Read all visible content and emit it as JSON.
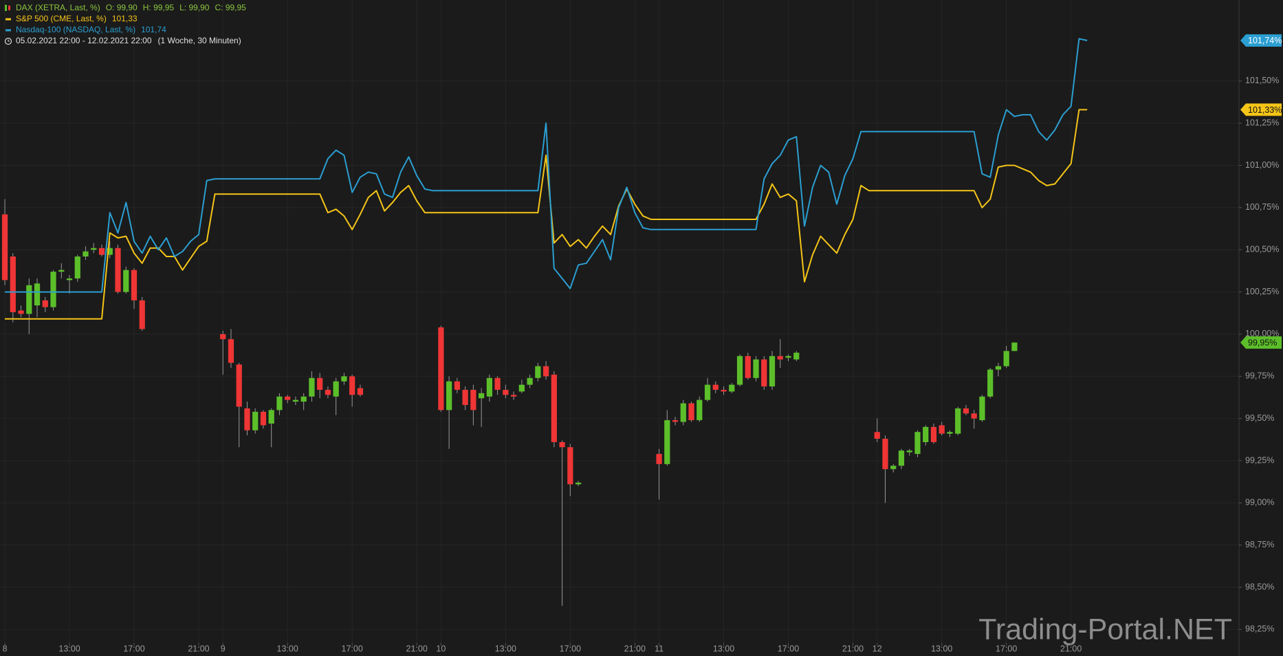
{
  "chart_data": {
    "type": "candlestick",
    "period": "05.02.2021 22:00 - 12.02.2021 22:00",
    "resolution": "(1 Woche, 30 Minuten)",
    "watermark": "Trading-Portal.NET",
    "grid": true,
    "xlim": [
      -0.6,
      152.8
    ],
    "xticks": [
      {
        "value": 0,
        "label": "8"
      },
      {
        "value": 8,
        "label": "13:00"
      },
      {
        "value": 16,
        "label": "17:00"
      },
      {
        "value": 24,
        "label": "21:00"
      },
      {
        "value": 27,
        "label": "9"
      },
      {
        "value": 35,
        "label": "13:00"
      },
      {
        "value": 43,
        "label": "17:00"
      },
      {
        "value": 51,
        "label": "21:00"
      },
      {
        "value": 54,
        "label": "10"
      },
      {
        "value": 62,
        "label": "13:00"
      },
      {
        "value": 70,
        "label": "17:00"
      },
      {
        "value": 78,
        "label": "21:00"
      },
      {
        "value": 81,
        "label": "11"
      },
      {
        "value": 89,
        "label": "13:00"
      },
      {
        "value": 97,
        "label": "17:00"
      },
      {
        "value": 105,
        "label": "21:00"
      },
      {
        "value": 108,
        "label": "12"
      },
      {
        "value": 116,
        "label": "13:00"
      },
      {
        "value": 124,
        "label": "17:00"
      },
      {
        "value": 132,
        "label": "21:00"
      }
    ],
    "ylim": [
      98.17,
      101.98
    ],
    "yticks": [
      {
        "value": 98.25,
        "label": "98,25%"
      },
      {
        "value": 98.5,
        "label": "98,50%"
      },
      {
        "value": 98.75,
        "label": "98,75%"
      },
      {
        "value": 99,
        "label": "99,00%"
      },
      {
        "value": 99.25,
        "label": "99,25%"
      },
      {
        "value": 99.5,
        "label": "99,50%"
      },
      {
        "value": 99.75,
        "label": "99,75%"
      },
      {
        "value": 100,
        "label": "100,00%"
      },
      {
        "value": 100.25,
        "label": "100,25%"
      },
      {
        "value": 100.5,
        "label": "100,50%"
      },
      {
        "value": 100.75,
        "label": "100,75%"
      },
      {
        "value": 101,
        "label": "101,00%"
      },
      {
        "value": 101.25,
        "label": "101,25%"
      },
      {
        "value": 101.5,
        "label": "101,50%"
      }
    ],
    "series": [
      {
        "type": "candlestick",
        "name": "DAX (XETRA, Last, %)",
        "up_color": "#5cbf2a",
        "down_color": "#ef3535",
        "text_color": "#8cc63f",
        "legend_values": [
          "O: 99,90",
          "H: 99,95",
          "L: 99,90",
          "C: 99,95"
        ],
        "last_label": "99,95%",
        "x": [
          0,
          1,
          2,
          3,
          4,
          5,
          6,
          7,
          8,
          9,
          10,
          11,
          12,
          13,
          14,
          15,
          16,
          17,
          27,
          28,
          29,
          30,
          31,
          32,
          33,
          34,
          35,
          36,
          37,
          38,
          39,
          40,
          41,
          42,
          43,
          44,
          54,
          55,
          56,
          57,
          58,
          59,
          60,
          61,
          62,
          63,
          64,
          65,
          66,
          67,
          68,
          69,
          70,
          71,
          81,
          82,
          83,
          84,
          85,
          86,
          87,
          88,
          89,
          90,
          91,
          92,
          93,
          94,
          95,
          96,
          97,
          98,
          108,
          109,
          110,
          111,
          112,
          113,
          114,
          115,
          116,
          117,
          118,
          119,
          120,
          121,
          122,
          123,
          124,
          125
        ],
        "open": [
          100.71,
          100.46,
          100.14,
          100.12,
          100.17,
          100.2,
          100.16,
          100.37,
          100.32,
          100.33,
          100.46,
          100.5,
          100.51,
          100.47,
          100.51,
          100.25,
          100.38,
          100.2,
          100.0,
          99.97,
          99.82,
          99.56,
          99.43,
          99.54,
          99.47,
          99.55,
          99.63,
          99.6,
          99.6,
          99.63,
          99.74,
          99.67,
          99.63,
          99.72,
          99.75,
          99.68,
          100.04,
          99.55,
          99.72,
          99.67,
          99.67,
          99.62,
          99.63,
          99.74,
          99.67,
          99.64,
          99.66,
          99.7,
          99.74,
          99.81,
          99.76,
          99.36,
          99.33,
          99.11,
          99.29,
          99.23,
          99.49,
          99.48,
          99.59,
          99.49,
          99.61,
          99.7,
          99.67,
          99.66,
          99.7,
          99.87,
          99.74,
          99.85,
          99.69,
          99.87,
          99.86,
          99.85,
          99.42,
          99.38,
          99.2,
          99.22,
          99.3,
          99.29,
          99.36,
          99.45,
          99.46,
          99.41,
          99.41,
          99.56,
          99.53,
          99.49,
          99.63,
          99.79,
          99.81,
          99.9
        ],
        "high": [
          100.8,
          100.48,
          100.17,
          100.33,
          100.33,
          100.22,
          100.38,
          100.42,
          100.35,
          100.47,
          100.52,
          100.54,
          100.53,
          100.55,
          100.53,
          100.4,
          100.39,
          100.22,
          100.02,
          100.03,
          99.83,
          99.6,
          99.56,
          99.55,
          99.56,
          99.65,
          99.64,
          99.63,
          99.65,
          99.78,
          99.77,
          99.69,
          99.74,
          99.77,
          99.76,
          99.7,
          100.05,
          99.75,
          99.74,
          99.69,
          99.7,
          99.68,
          99.76,
          99.75,
          99.7,
          99.66,
          99.73,
          99.76,
          99.83,
          99.84,
          99.78,
          99.37,
          99.35,
          99.13,
          99.32,
          99.55,
          99.51,
          99.61,
          99.6,
          99.63,
          99.74,
          99.72,
          99.69,
          99.71,
          99.88,
          99.89,
          99.87,
          99.87,
          99.9,
          99.97,
          99.88,
          99.9,
          99.5,
          99.4,
          99.23,
          99.32,
          99.32,
          99.43,
          99.46,
          99.47,
          99.48,
          99.43,
          99.57,
          99.58,
          99.55,
          99.64,
          99.8,
          99.83,
          99.93,
          99.95
        ],
        "low": [
          100.29,
          100.07,
          100.1,
          100.0,
          100.1,
          100.13,
          100.14,
          100.33,
          100.24,
          100.31,
          100.44,
          100.48,
          100.46,
          100.45,
          100.24,
          100.24,
          100.15,
          100.02,
          99.76,
          99.8,
          99.33,
          99.4,
          99.41,
          99.44,
          99.33,
          99.52,
          99.59,
          99.58,
          99.55,
          99.6,
          99.62,
          99.62,
          99.52,
          99.7,
          99.57,
          99.63,
          99.54,
          99.32,
          99.65,
          99.55,
          99.46,
          99.45,
          99.6,
          99.64,
          99.62,
          99.61,
          99.65,
          99.68,
          99.72,
          99.73,
          99.33,
          98.39,
          99.04,
          99.1,
          99.02,
          99.22,
          99.46,
          99.46,
          99.48,
          99.48,
          99.6,
          99.65,
          99.64,
          99.65,
          99.69,
          99.73,
          99.72,
          99.67,
          99.67,
          99.8,
          99.84,
          99.84,
          99.36,
          99.0,
          99.18,
          99.2,
          99.28,
          99.27,
          99.34,
          99.35,
          99.4,
          99.39,
          99.4,
          99.52,
          99.44,
          99.48,
          99.62,
          99.75,
          99.8,
          99.9
        ],
        "close": [
          100.32,
          100.13,
          100.12,
          100.29,
          100.3,
          100.16,
          100.37,
          100.38,
          100.33,
          100.46,
          100.49,
          100.51,
          100.47,
          100.51,
          100.25,
          100.38,
          100.2,
          100.03,
          99.97,
          99.83,
          99.57,
          99.43,
          99.54,
          99.46,
          99.55,
          99.63,
          99.61,
          99.61,
          99.63,
          99.74,
          99.67,
          99.64,
          99.72,
          99.75,
          99.64,
          99.64,
          99.55,
          99.72,
          99.67,
          99.58,
          99.55,
          99.65,
          99.74,
          99.67,
          99.64,
          99.63,
          99.7,
          99.74,
          99.81,
          99.75,
          99.36,
          99.33,
          99.11,
          99.12,
          99.23,
          99.49,
          99.48,
          99.59,
          99.49,
          99.61,
          99.7,
          99.67,
          99.66,
          99.7,
          99.87,
          99.74,
          99.85,
          99.69,
          99.87,
          99.85,
          99.87,
          99.89,
          99.38,
          99.2,
          99.22,
          99.31,
          99.31,
          99.42,
          99.45,
          99.36,
          99.41,
          99.42,
          99.56,
          99.53,
          99.5,
          99.63,
          99.79,
          99.81,
          99.9,
          99.95
        ]
      },
      {
        "type": "line",
        "name": "S&P 500 (CME, Last, %)",
        "color": "#f5c518",
        "legend_value": "101,33",
        "last_label": "101,33%",
        "x": [
          0,
          12,
          13,
          14,
          15,
          16,
          17,
          18,
          19,
          20,
          21,
          22,
          23,
          24,
          25,
          26,
          39,
          40,
          41,
          42,
          43,
          44,
          45,
          46,
          47,
          48,
          49,
          50,
          51,
          52,
          53,
          66,
          67,
          68,
          69,
          70,
          71,
          72,
          73,
          74,
          75,
          76,
          77,
          78,
          79,
          80,
          93,
          94,
          95,
          96,
          97,
          98,
          99,
          100,
          101,
          102,
          103,
          104,
          105,
          106,
          107,
          120,
          121,
          122,
          123,
          124,
          125,
          126,
          127,
          128,
          129,
          130,
          131,
          132,
          133,
          134
        ],
        "values": [
          100.09,
          100.09,
          100.6,
          100.57,
          100.58,
          100.48,
          100.42,
          100.51,
          100.51,
          100.46,
          100.46,
          100.38,
          100.45,
          100.52,
          100.55,
          100.83,
          100.83,
          100.72,
          100.74,
          100.7,
          100.62,
          100.71,
          100.81,
          100.85,
          100.73,
          100.78,
          100.84,
          100.88,
          100.79,
          100.72,
          100.72,
          100.72,
          101.06,
          100.54,
          100.59,
          100.52,
          100.56,
          100.51,
          100.58,
          100.64,
          100.59,
          100.76,
          100.86,
          100.77,
          100.7,
          100.68,
          100.68,
          100.77,
          100.89,
          100.81,
          100.83,
          100.79,
          100.31,
          100.47,
          100.58,
          100.53,
          100.48,
          100.59,
          100.68,
          100.88,
          100.85,
          100.85,
          100.75,
          100.8,
          100.99,
          101.0,
          101.0,
          100.98,
          100.96,
          100.91,
          100.88,
          100.89,
          100.95,
          101.01,
          101.33,
          101.33
        ]
      },
      {
        "type": "line",
        "name": "Nasdaq-100 (NASDAQ, Last, %)",
        "color": "#2b9fd2",
        "legend_value": "101,74",
        "last_label": "101,74%",
        "x": [
          0,
          12,
          13,
          14,
          15,
          16,
          17,
          18,
          19,
          20,
          21,
          22,
          23,
          24,
          25,
          26,
          39,
          40,
          41,
          42,
          43,
          44,
          45,
          46,
          47,
          48,
          49,
          50,
          51,
          52,
          53,
          66,
          67,
          68,
          69,
          70,
          71,
          72,
          73,
          74,
          75,
          76,
          77,
          78,
          79,
          80,
          93,
          94,
          95,
          96,
          97,
          98,
          99,
          100,
          101,
          102,
          103,
          104,
          105,
          106,
          120,
          121,
          122,
          123,
          124,
          125,
          126,
          127,
          128,
          129,
          130,
          131,
          132,
          133,
          134
        ],
        "values": [
          100.25,
          100.25,
          100.72,
          100.6,
          100.78,
          100.55,
          100.48,
          100.58,
          100.5,
          100.57,
          100.46,
          100.49,
          100.55,
          100.59,
          100.91,
          100.92,
          100.92,
          101.04,
          101.09,
          101.06,
          100.84,
          100.93,
          100.96,
          100.95,
          100.83,
          100.81,
          100.96,
          101.05,
          100.94,
          100.86,
          100.85,
          100.85,
          101.25,
          100.39,
          100.33,
          100.27,
          100.41,
          100.42,
          100.49,
          100.56,
          100.44,
          100.75,
          100.87,
          100.72,
          100.63,
          100.62,
          100.62,
          100.92,
          101.01,
          101.06,
          101.15,
          101.17,
          100.64,
          100.87,
          101.0,
          100.96,
          100.77,
          100.94,
          101.04,
          101.2,
          101.2,
          100.95,
          100.93,
          101.18,
          101.33,
          101.29,
          101.3,
          101.3,
          101.2,
          101.15,
          101.21,
          101.3,
          101.35,
          101.75,
          101.74
        ]
      }
    ]
  }
}
